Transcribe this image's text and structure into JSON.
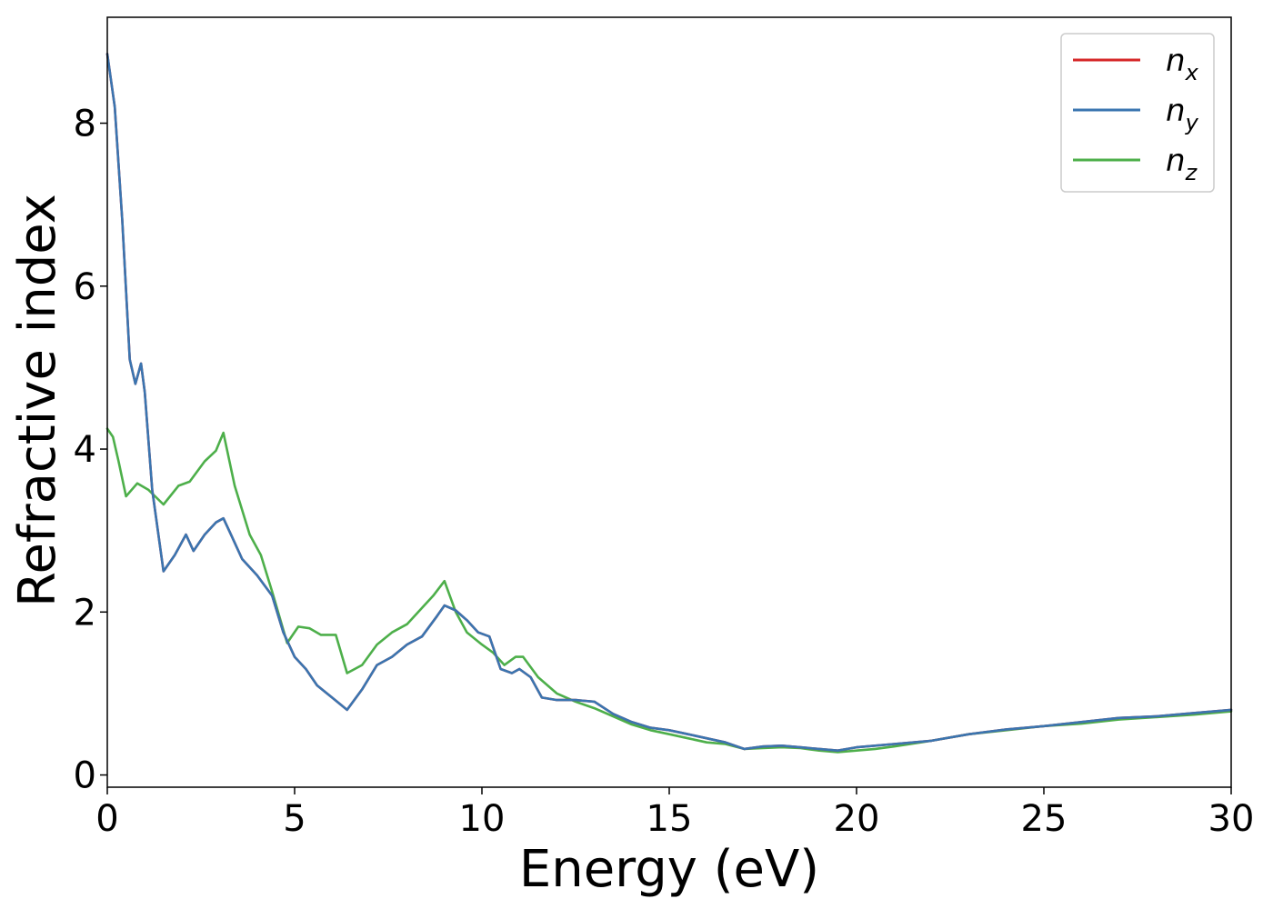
{
  "chart_data": {
    "type": "line",
    "title": "",
    "xlabel": "Energy (eV)",
    "ylabel": "Refractive index",
    "xlim": [
      0,
      30
    ],
    "ylim": [
      -0.15,
      9.3
    ],
    "xticks": [
      0,
      5,
      10,
      15,
      20,
      25,
      30
    ],
    "yticks": [
      0,
      2,
      4,
      6,
      8
    ],
    "grid": false,
    "legend_position": "top-right",
    "series": [
      {
        "name": "n_x",
        "legend_main": "n",
        "legend_sub": "x",
        "color": "#d62728",
        "x": [
          0,
          0.2,
          0.4,
          0.6,
          0.75,
          0.9,
          1.0,
          1.2,
          1.5,
          1.8,
          2.1,
          2.3,
          2.6,
          2.9,
          3.1,
          3.3,
          3.6,
          4.0,
          4.4,
          4.7,
          5.0,
          5.3,
          5.6,
          6.0,
          6.4,
          6.8,
          7.2,
          7.6,
          8.0,
          8.4,
          8.8,
          9.0,
          9.3,
          9.6,
          9.9,
          10.2,
          10.5,
          10.8,
          11.0,
          11.3,
          11.6,
          12.0,
          12.5,
          13.0,
          13.5,
          14.0,
          14.5,
          15.0,
          15.5,
          16.0,
          16.5,
          17.0,
          17.5,
          18.0,
          18.5,
          19.0,
          19.5,
          20.0,
          20.5,
          21.0,
          22.0,
          23.0,
          24.0,
          25.0,
          26.0,
          27.0,
          28.0,
          29.0,
          30.0
        ],
        "values": [
          8.85,
          8.2,
          6.8,
          5.1,
          4.8,
          5.05,
          4.7,
          3.5,
          2.5,
          2.7,
          2.95,
          2.75,
          2.95,
          3.1,
          3.15,
          2.95,
          2.65,
          2.45,
          2.2,
          1.75,
          1.45,
          1.3,
          1.1,
          0.95,
          0.8,
          1.05,
          1.35,
          1.45,
          1.6,
          1.7,
          1.95,
          2.08,
          2.02,
          1.9,
          1.75,
          1.7,
          1.3,
          1.25,
          1.3,
          1.2,
          0.95,
          0.92,
          0.92,
          0.9,
          0.75,
          0.65,
          0.58,
          0.55,
          0.5,
          0.45,
          0.4,
          0.32,
          0.35,
          0.36,
          0.34,
          0.32,
          0.3,
          0.34,
          0.36,
          0.38,
          0.42,
          0.5,
          0.56,
          0.6,
          0.65,
          0.7,
          0.72,
          0.76,
          0.8
        ]
      },
      {
        "name": "n_y",
        "legend_main": "n",
        "legend_sub": "y",
        "color": "#3a75b0",
        "x": [
          0,
          0.2,
          0.4,
          0.6,
          0.75,
          0.9,
          1.0,
          1.2,
          1.5,
          1.8,
          2.1,
          2.3,
          2.6,
          2.9,
          3.1,
          3.3,
          3.6,
          4.0,
          4.4,
          4.7,
          5.0,
          5.3,
          5.6,
          6.0,
          6.4,
          6.8,
          7.2,
          7.6,
          8.0,
          8.4,
          8.8,
          9.0,
          9.3,
          9.6,
          9.9,
          10.2,
          10.5,
          10.8,
          11.0,
          11.3,
          11.6,
          12.0,
          12.5,
          13.0,
          13.5,
          14.0,
          14.5,
          15.0,
          15.5,
          16.0,
          16.5,
          17.0,
          17.5,
          18.0,
          18.5,
          19.0,
          19.5,
          20.0,
          20.5,
          21.0,
          22.0,
          23.0,
          24.0,
          25.0,
          26.0,
          27.0,
          28.0,
          29.0,
          30.0
        ],
        "values": [
          8.85,
          8.2,
          6.8,
          5.1,
          4.8,
          5.05,
          4.7,
          3.5,
          2.5,
          2.7,
          2.95,
          2.75,
          2.95,
          3.1,
          3.15,
          2.95,
          2.65,
          2.45,
          2.2,
          1.75,
          1.45,
          1.3,
          1.1,
          0.95,
          0.8,
          1.05,
          1.35,
          1.45,
          1.6,
          1.7,
          1.95,
          2.08,
          2.02,
          1.9,
          1.75,
          1.7,
          1.3,
          1.25,
          1.3,
          1.2,
          0.95,
          0.92,
          0.92,
          0.9,
          0.75,
          0.65,
          0.58,
          0.55,
          0.5,
          0.45,
          0.4,
          0.32,
          0.35,
          0.36,
          0.34,
          0.32,
          0.3,
          0.34,
          0.36,
          0.38,
          0.42,
          0.5,
          0.56,
          0.6,
          0.65,
          0.7,
          0.72,
          0.76,
          0.8
        ]
      },
      {
        "name": "n_z",
        "legend_main": "n",
        "legend_sub": "z",
        "color": "#4daf4a",
        "x": [
          0,
          0.15,
          0.3,
          0.5,
          0.8,
          1.1,
          1.5,
          1.9,
          2.2,
          2.6,
          2.9,
          3.1,
          3.4,
          3.8,
          4.1,
          4.4,
          4.8,
          5.1,
          5.4,
          5.7,
          6.1,
          6.4,
          6.8,
          7.2,
          7.6,
          8.0,
          8.4,
          8.7,
          9.0,
          9.3,
          9.6,
          10.0,
          10.3,
          10.6,
          10.9,
          11.1,
          11.5,
          12.0,
          12.5,
          13.0,
          13.5,
          14.0,
          14.5,
          15.0,
          15.5,
          16.0,
          16.5,
          17.0,
          17.5,
          18.0,
          18.5,
          19.0,
          19.5,
          20.0,
          20.5,
          21.0,
          22.0,
          23.0,
          24.0,
          25.0,
          26.0,
          27.0,
          28.0,
          29.0,
          30.0
        ],
        "values": [
          4.25,
          4.15,
          3.85,
          3.42,
          3.58,
          3.5,
          3.32,
          3.55,
          3.6,
          3.85,
          3.98,
          4.2,
          3.55,
          2.95,
          2.7,
          2.25,
          1.62,
          1.82,
          1.8,
          1.72,
          1.72,
          1.25,
          1.35,
          1.6,
          1.75,
          1.85,
          2.05,
          2.2,
          2.38,
          2.0,
          1.75,
          1.6,
          1.5,
          1.35,
          1.45,
          1.45,
          1.2,
          1.0,
          0.9,
          0.82,
          0.72,
          0.62,
          0.55,
          0.5,
          0.45,
          0.4,
          0.38,
          0.32,
          0.33,
          0.34,
          0.33,
          0.3,
          0.28,
          0.3,
          0.32,
          0.35,
          0.42,
          0.5,
          0.55,
          0.6,
          0.63,
          0.68,
          0.71,
          0.74,
          0.78
        ]
      }
    ]
  }
}
